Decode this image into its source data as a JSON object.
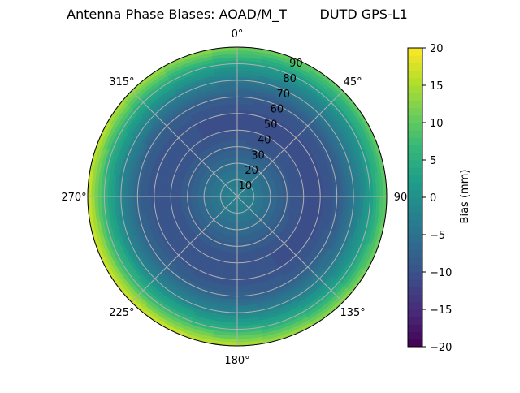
{
  "chart_data": {
    "type": "heatmap",
    "projection": "polar",
    "title": "Antenna Phase Biases: AOAD/M_T        DUTD GPS-L1",
    "theta_direction": "clockwise",
    "theta_zero": "top",
    "theta_ticks": [
      "0°",
      "45°",
      "90",
      "135°",
      "180°",
      "225°",
      "270°",
      "315°"
    ],
    "theta_tick_values": [
      0,
      45,
      90,
      135,
      180,
      225,
      270,
      315
    ],
    "r_ticks": [
      "10",
      "20",
      "30",
      "40",
      "50",
      "60",
      "70",
      "80",
      "90"
    ],
    "r_tick_values": [
      10,
      20,
      30,
      40,
      50,
      60,
      70,
      80,
      90
    ],
    "rlim": [
      0,
      90
    ],
    "grid": true,
    "colormap": "viridis",
    "colorbar": {
      "label": "Bias (mm)",
      "range": [
        -20,
        20
      ],
      "ticks": [
        "20",
        "15",
        "10",
        "5",
        "0",
        "−5",
        "−10",
        "−15",
        "−20"
      ],
      "tick_values": [
        20,
        15,
        10,
        5,
        0,
        -5,
        -10,
        -15,
        -20
      ],
      "levels": 40
    },
    "radial_profile": {
      "zenith_deg": [
        0,
        10,
        20,
        30,
        40,
        50,
        60,
        70,
        80,
        90
      ],
      "bias_mm": [
        -2,
        -3.5,
        -6,
        -8.5,
        -10,
        -10,
        -8,
        -3,
        4,
        14
      ]
    },
    "azimuth_variation": {
      "note_direction_of_max_deg": 240,
      "amplitude_at_edge_mm": 4
    }
  }
}
